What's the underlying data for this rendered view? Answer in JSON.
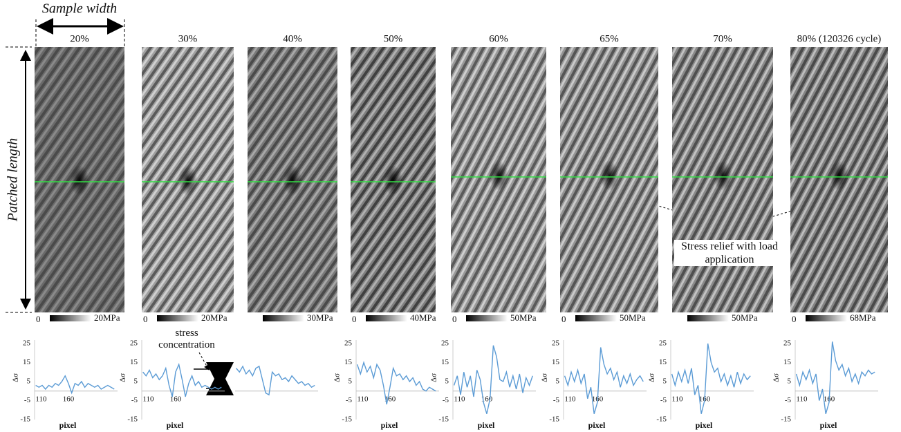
{
  "annotations": {
    "sample_width": "Sample width",
    "patched_length": "Patched length",
    "stress_concentration": "stress concentration",
    "stress_relief": "Stress relief with load application"
  },
  "panels": [
    {
      "label": "20%",
      "cbar_min": "0",
      "cbar_max": "20MPa"
    },
    {
      "label": "30%",
      "cbar_min": "0",
      "cbar_max": "20MPa"
    },
    {
      "label": "40%",
      "cbar_max": "30MPa"
    },
    {
      "label": "50%",
      "cbar_min": "0",
      "cbar_max": "40MPa"
    },
    {
      "label": "60%",
      "cbar_min": "0",
      "cbar_max": "50MPa"
    },
    {
      "label": "65%",
      "cbar_min": "0",
      "cbar_max": "50MPa"
    },
    {
      "label": "70%",
      "cbar_max": "50MPa"
    },
    {
      "label": "80% (120326 cycle)",
      "cbar_min": "0",
      "cbar_max": "68MPa"
    }
  ],
  "chart_data": [
    {
      "type": "line",
      "ylabel": "Δσ",
      "xlabel": "pixel",
      "color": "#5b9bd5",
      "xlim": [
        98,
        250
      ],
      "ylim": [
        -15,
        25
      ],
      "xticks": [
        110,
        160
      ],
      "yticks": [
        -15,
        -5,
        5,
        15,
        25
      ],
      "x": [
        100,
        106,
        112,
        118,
        124,
        130,
        136,
        142,
        148,
        154,
        160,
        166,
        172,
        178,
        184,
        190,
        196,
        202,
        208,
        214,
        220,
        226,
        232,
        238,
        244
      ],
      "values": [
        3,
        2,
        3,
        1,
        3,
        2,
        4,
        3,
        5,
        8,
        4,
        -1,
        4,
        3,
        5,
        2,
        4,
        3,
        2,
        3,
        1,
        2,
        3,
        2,
        1
      ]
    },
    {
      "type": "line",
      "ylabel": "Δσ",
      "xlabel": "pixel",
      "color": "#5b9bd5",
      "xlim": [
        98,
        250
      ],
      "ylim": [
        -15,
        25
      ],
      "xticks": [
        110,
        160
      ],
      "yticks": [
        -15,
        -5,
        5,
        15,
        25
      ],
      "x": [
        100,
        106,
        112,
        118,
        124,
        130,
        136,
        142,
        148,
        154,
        160,
        166,
        172,
        178,
        184,
        190,
        196,
        202,
        208,
        214,
        220,
        226,
        232,
        238,
        244
      ],
      "values": [
        10,
        8,
        11,
        7,
        9,
        6,
        8,
        12,
        3,
        -3,
        10,
        14,
        6,
        -3,
        4,
        8,
        3,
        5,
        2,
        3,
        2,
        1,
        2,
        1,
        2
      ]
    },
    {
      "type": "line",
      "color": "#5b9bd5",
      "xlim": [
        98,
        250
      ],
      "ylim": [
        -15,
        25
      ],
      "x": [
        100,
        106,
        112,
        118,
        124,
        130,
        136,
        142,
        148,
        154,
        160,
        166,
        172,
        178,
        184,
        190,
        196,
        202,
        208,
        214,
        220,
        226,
        232,
        238,
        244
      ],
      "values": [
        12,
        10,
        13,
        9,
        11,
        8,
        12,
        13,
        6,
        -1,
        -2,
        10,
        8,
        9,
        6,
        7,
        5,
        8,
        6,
        4,
        5,
        3,
        4,
        2,
        3
      ]
    },
    {
      "type": "line",
      "ylabel": "Δσ",
      "xlabel": "pixel",
      "color": "#5b9bd5",
      "xlim": [
        98,
        250
      ],
      "ylim": [
        -15,
        25
      ],
      "xticks": [
        110,
        160
      ],
      "yticks": [
        -15,
        -5,
        5,
        15,
        25
      ],
      "x": [
        100,
        106,
        112,
        118,
        124,
        130,
        136,
        142,
        148,
        154,
        160,
        166,
        172,
        178,
        184,
        190,
        196,
        202,
        208,
        214,
        220,
        226,
        232,
        238,
        244
      ],
      "values": [
        14,
        9,
        15,
        10,
        13,
        7,
        14,
        11,
        3,
        -7,
        2,
        12,
        8,
        9,
        6,
        8,
        5,
        7,
        3,
        5,
        1,
        0,
        2,
        1,
        0
      ]
    },
    {
      "type": "line",
      "ylabel": "Δσ",
      "xlabel": "pixel",
      "color": "#5b9bd5",
      "xlim": [
        98,
        250
      ],
      "ylim": [
        -15,
        25
      ],
      "xticks": [
        110,
        160
      ],
      "yticks": [
        -15,
        -5,
        5,
        15,
        25
      ],
      "x": [
        100,
        106,
        112,
        118,
        124,
        130,
        136,
        142,
        148,
        154,
        160,
        166,
        172,
        178,
        184,
        190,
        196,
        202,
        208,
        214,
        220,
        226,
        232,
        238,
        244
      ],
      "values": [
        3,
        8,
        -2,
        10,
        2,
        8,
        -3,
        11,
        6,
        -6,
        -12,
        -4,
        24,
        18,
        6,
        5,
        10,
        2,
        8,
        1,
        9,
        -1,
        7,
        3,
        8
      ]
    },
    {
      "type": "line",
      "ylabel": "Δσ",
      "xlabel": "pixel",
      "color": "#5b9bd5",
      "xlim": [
        98,
        250
      ],
      "ylim": [
        -15,
        25
      ],
      "xticks": [
        110,
        160
      ],
      "yticks": [
        -15,
        -5,
        5,
        15,
        25
      ],
      "x": [
        100,
        106,
        112,
        118,
        124,
        130,
        136,
        142,
        148,
        154,
        160,
        166,
        172,
        178,
        184,
        190,
        196,
        202,
        208,
        214,
        220,
        226,
        232,
        238,
        244
      ],
      "values": [
        8,
        3,
        10,
        5,
        11,
        4,
        9,
        -4,
        2,
        -12,
        -6,
        23,
        14,
        9,
        12,
        6,
        10,
        2,
        8,
        4,
        9,
        3,
        6,
        8,
        5
      ]
    },
    {
      "type": "line",
      "ylabel": "Δσ",
      "xlabel": "pixel",
      "color": "#5b9bd5",
      "xlim": [
        98,
        250
      ],
      "ylim": [
        -15,
        25
      ],
      "xticks": [
        110,
        160
      ],
      "yticks": [
        -15,
        -5,
        5,
        15,
        25
      ],
      "x": [
        100,
        106,
        112,
        118,
        124,
        130,
        136,
        142,
        148,
        154,
        160,
        166,
        172,
        178,
        184,
        190,
        196,
        202,
        208,
        214,
        220,
        226,
        232,
        238,
        244
      ],
      "values": [
        9,
        3,
        10,
        5,
        11,
        4,
        12,
        -2,
        3,
        -12,
        -5,
        25,
        15,
        10,
        12,
        5,
        9,
        3,
        8,
        2,
        10,
        4,
        9,
        6,
        8
      ]
    },
    {
      "type": "line",
      "ylabel": "Δσ",
      "xlabel": "pixel",
      "color": "#5b9bd5",
      "xlim": [
        98,
        250
      ],
      "ylim": [
        -15,
        25
      ],
      "xticks": [
        110,
        160
      ],
      "yticks": [
        -15,
        -5,
        5,
        15,
        25
      ],
      "x": [
        100,
        106,
        112,
        118,
        124,
        130,
        136,
        142,
        148,
        154,
        160,
        166,
        172,
        178,
        184,
        190,
        196,
        202,
        208,
        214,
        220,
        226,
        232,
        238,
        244
      ],
      "values": [
        9,
        3,
        10,
        6,
        11,
        4,
        9,
        -5,
        1,
        -12,
        -6,
        26,
        16,
        11,
        14,
        8,
        12,
        5,
        9,
        4,
        10,
        8,
        11,
        9,
        10
      ]
    }
  ]
}
